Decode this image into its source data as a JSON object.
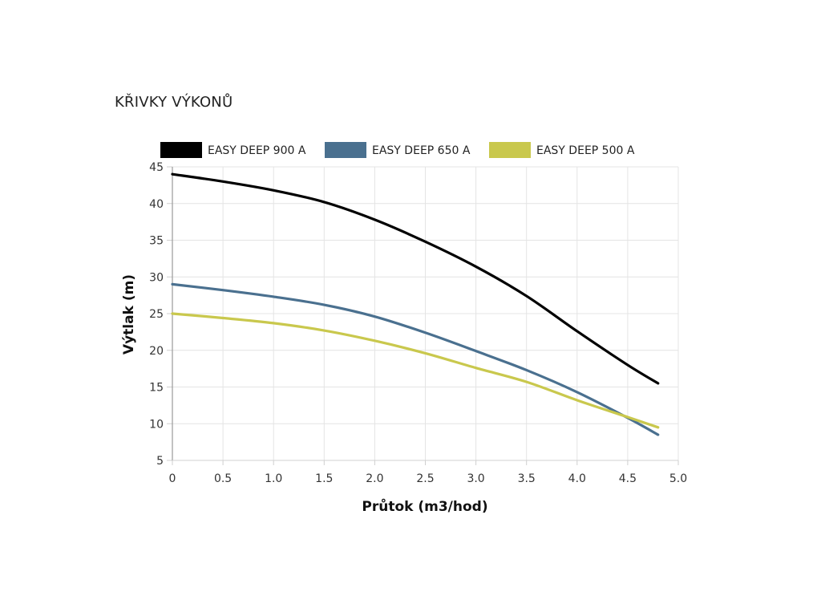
{
  "page": {
    "title": "KŘIVKY VÝKONŮ"
  },
  "chart_data": {
    "type": "line",
    "title": "",
    "xlabel": "Průtok (m3/hod)",
    "ylabel": "Výtlak (m)",
    "xlim": [
      0,
      5.0
    ],
    "ylim": [
      5,
      45
    ],
    "x_ticks": [
      0,
      0.5,
      1.0,
      1.5,
      2.0,
      2.5,
      3.0,
      3.5,
      4.0,
      4.5,
      5.0
    ],
    "x_tick_labels": [
      "0",
      "0.5",
      "1.0",
      "1.5",
      "2.0",
      "2.5",
      "3.0",
      "3.5",
      "4.0",
      "4.5",
      "5.0"
    ],
    "y_ticks": [
      5,
      10,
      15,
      20,
      25,
      30,
      35,
      40,
      45
    ],
    "y_tick_labels": [
      "5",
      "10",
      "15",
      "20",
      "25",
      "30",
      "35",
      "40",
      "45"
    ],
    "grid": true,
    "legend": "top",
    "series": [
      {
        "name": "EASY DEEP 900 A",
        "color": "#000000",
        "x": [
          0,
          0.5,
          1.0,
          1.5,
          2.0,
          2.5,
          3.0,
          3.5,
          4.0,
          4.5,
          4.8
        ],
        "y": [
          44,
          43,
          41.8,
          40.2,
          37.8,
          34.8,
          31.4,
          27.4,
          22.6,
          18.0,
          15.5
        ]
      },
      {
        "name": "EASY DEEP 650 A",
        "color": "#4a708f",
        "x": [
          0,
          0.5,
          1.0,
          1.5,
          2.0,
          2.5,
          3.0,
          3.5,
          4.0,
          4.5,
          4.8
        ],
        "y": [
          29,
          28.2,
          27.3,
          26.2,
          24.6,
          22.4,
          19.9,
          17.3,
          14.3,
          10.8,
          8.5
        ]
      },
      {
        "name": "EASY DEEP 500 A",
        "color": "#c9c84d",
        "x": [
          0,
          0.5,
          1.0,
          1.5,
          2.0,
          2.5,
          3.0,
          3.5,
          4.0,
          4.5,
          4.8
        ],
        "y": [
          25,
          24.4,
          23.7,
          22.7,
          21.3,
          19.6,
          17.6,
          15.7,
          13.2,
          10.9,
          9.5
        ]
      }
    ]
  }
}
